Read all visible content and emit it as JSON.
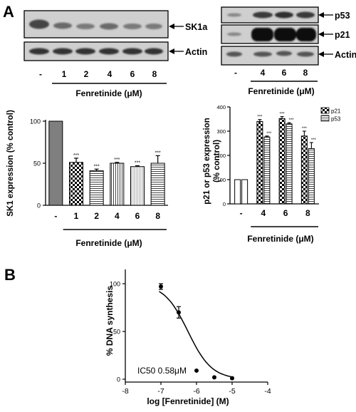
{
  "panel_labels": {
    "a": "A",
    "b": "B"
  },
  "blots": {
    "left": {
      "lanes": [
        "-",
        "1",
        "2",
        "4",
        "6",
        "8"
      ],
      "lane_marks": [
        "-",
        "1",
        "2",
        "4",
        "6",
        "8"
      ],
      "bands": [
        "SK1a",
        "Actin"
      ],
      "treatment": "Fenretinide (μM)"
    },
    "right": {
      "lanes": [
        "-",
        "4",
        "6",
        "8"
      ],
      "lane_marks": [
        "-",
        "4",
        "6",
        "8"
      ],
      "bands": [
        "p53",
        "p21",
        "Actin"
      ],
      "treatment": "Fenretinide (μM)"
    }
  },
  "colors": {
    "ink": "#000000",
    "blot_bg": "#cfcfcf",
    "bar_gray": "#7f7f7f",
    "band_dark": "#0d0d0d"
  },
  "chart_data": [
    {
      "type": "bar",
      "panel": "A-left",
      "categories": [
        "-",
        "1",
        "2",
        "4",
        "6",
        "8"
      ],
      "category_labels": [
        "-",
        "1",
        "2",
        "4",
        "6",
        "8"
      ],
      "values": [
        100,
        51,
        41,
        50,
        46,
        50
      ],
      "errors": [
        0,
        5,
        2,
        1,
        1,
        9
      ],
      "significance": [
        "",
        "***",
        "***",
        "***",
        "***",
        "***"
      ],
      "ylabel": "SK1 expression (% control)",
      "xlabel": "Fenretinide (μM)",
      "ylim": [
        0,
        100
      ],
      "yticks": [
        0,
        50,
        100
      ],
      "ytick_labels": [
        "0",
        "50",
        "100"
      ],
      "grid": false,
      "fills": [
        "solid-gray",
        "checker",
        "horizontal-lines",
        "vertical-lines",
        "light",
        "horizontal-lines"
      ]
    },
    {
      "type": "bar",
      "panel": "A-right",
      "categories": [
        "-",
        "4",
        "6",
        "8"
      ],
      "category_labels": [
        "-",
        "4",
        "6",
        "8"
      ],
      "series": [
        {
          "name": "p21",
          "values": [
            100,
            340,
            352,
            280
          ],
          "errors": [
            0,
            8,
            8,
            20
          ],
          "significance": [
            "",
            "***",
            "***",
            "***"
          ],
          "fill": "checker"
        },
        {
          "name": "p53",
          "values": [
            100,
            276,
            330,
            228
          ],
          "errors": [
            0,
            4,
            5,
            25
          ],
          "significance": [
            "",
            "***",
            "***",
            "***"
          ],
          "fill": "horizontal-lines"
        }
      ],
      "ylabel": "p21 or p53 expression (% control)",
      "ylabel_lines": [
        "p21 or p53 expression",
        "(% control)"
      ],
      "xlabel": "Fenretinide (μM)",
      "ylim": [
        0,
        400
      ],
      "yticks": [
        0,
        100,
        200,
        300,
        400
      ],
      "ytick_labels": [
        "0",
        "100",
        "200",
        "300",
        "400"
      ],
      "legend_position": "top-right",
      "grid": false
    },
    {
      "type": "scatter",
      "panel": "B",
      "x": [
        -7,
        -6.5,
        -6,
        -5.5,
        -5
      ],
      "y": [
        97,
        70,
        9,
        2,
        1
      ],
      "errors": [
        3,
        6,
        0,
        0,
        0
      ],
      "fit_curve": {
        "model": "sigmoidal dose-response",
        "log_ic50": -6.24,
        "top": 100,
        "bottom": 0,
        "hill_slope": -1.3
      },
      "annotation": "IC50 0.58μM",
      "xlabel": "log [Fenretinide] (M)",
      "ylabel": "% DNA synthesis",
      "xlim": [
        -8,
        -4
      ],
      "ylim": [
        0,
        100
      ],
      "xticks": [
        -8,
        -7,
        -6,
        -5,
        -4
      ],
      "xtick_labels": [
        "-8",
        "-7",
        "-6",
        "-5",
        "-4"
      ],
      "yticks": [
        0,
        50,
        100
      ],
      "ytick_labels": [
        "0",
        "50",
        "100"
      ],
      "grid": false
    }
  ]
}
